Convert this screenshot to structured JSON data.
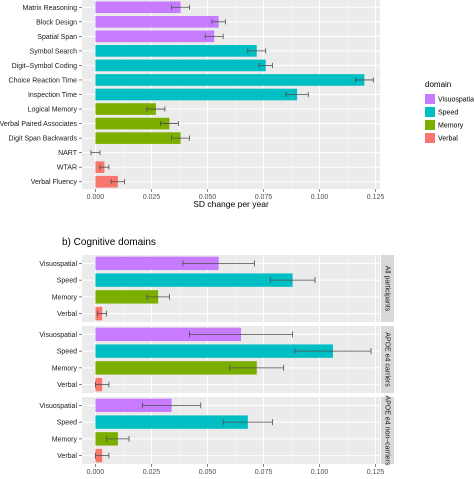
{
  "colors": {
    "Visuospatial": "#C77CFF",
    "Speed": "#00BFC4",
    "Memory": "#7CAE00",
    "Verbal": "#F8766D",
    "panel_bg": "#EBEBEB",
    "grid": "#FFFFFF",
    "strip_bg": "#D9D9D9",
    "error_bar": "#4D4D4D"
  },
  "legend": {
    "title": "domain",
    "items": [
      {
        "label": "Visuospatial",
        "color_key": "Visuospatial"
      },
      {
        "label": "Speed",
        "color_key": "Speed"
      },
      {
        "label": "Memory",
        "color_key": "Memory"
      },
      {
        "label": "Verbal",
        "color_key": "Verbal"
      }
    ]
  },
  "chart_data": [
    {
      "type": "bar",
      "orientation": "horizontal",
      "title": "",
      "xlabel": "SD change per year",
      "xlim": [
        -0.006,
        0.127
      ],
      "xticks": [
        0.0,
        0.025,
        0.05,
        0.075,
        0.1,
        0.125
      ],
      "xtick_labels": [
        "0.000",
        "0.025",
        "0.050",
        "0.075",
        "0.100",
        "0.125"
      ],
      "categories": [
        "Matrix Reasoning",
        "Block Design",
        "Spatial Span",
        "Symbol Search",
        "Digit–Symbol Coding",
        "Choice Reaction Time",
        "Inspection Time",
        "Logical Memory",
        "Verbal Paired Associates",
        "Digit Span Backwards",
        "NART",
        "WTAR",
        "Verbal Fluency"
      ],
      "domains": [
        "Visuospatial",
        "Visuospatial",
        "Visuospatial",
        "Speed",
        "Speed",
        "Speed",
        "Speed",
        "Memory",
        "Memory",
        "Memory",
        "Verbal",
        "Verbal",
        "Verbal"
      ],
      "values": [
        0.038,
        0.055,
        0.053,
        0.072,
        0.076,
        0.12,
        0.09,
        0.027,
        0.033,
        0.038,
        0.0,
        0.004,
        0.01
      ],
      "errors": [
        0.004,
        0.003,
        0.004,
        0.004,
        0.003,
        0.004,
        0.005,
        0.004,
        0.004,
        0.004,
        0.002,
        0.002,
        0.003
      ]
    },
    {
      "type": "bar",
      "orientation": "horizontal",
      "title": "b) Cognitive domains",
      "xlabel": "",
      "xlim": [
        -0.006,
        0.127
      ],
      "xticks": [
        0.0,
        0.025,
        0.05,
        0.075,
        0.1,
        0.125
      ],
      "xtick_labels": [
        "0.000",
        "0.025",
        "0.050",
        "0.075",
        "0.100",
        "0.125"
      ],
      "categories": [
        "Visuospatial",
        "Speed",
        "Memory",
        "Verbal"
      ],
      "facets": [
        {
          "label": "All participants",
          "values": [
            0.055,
            0.088,
            0.028,
            0.003
          ],
          "errors": [
            0.016,
            0.01,
            0.005,
            0.002
          ]
        },
        {
          "label": "APOE e4 carriers",
          "values": [
            0.065,
            0.106,
            0.072,
            0.003
          ],
          "errors": [
            0.023,
            0.017,
            0.012,
            0.003
          ]
        },
        {
          "label": "APOE e4 non–carriers",
          "values": [
            0.034,
            0.068,
            0.01,
            0.003
          ],
          "errors": [
            0.013,
            0.011,
            0.005,
            0.003
          ]
        }
      ]
    }
  ]
}
